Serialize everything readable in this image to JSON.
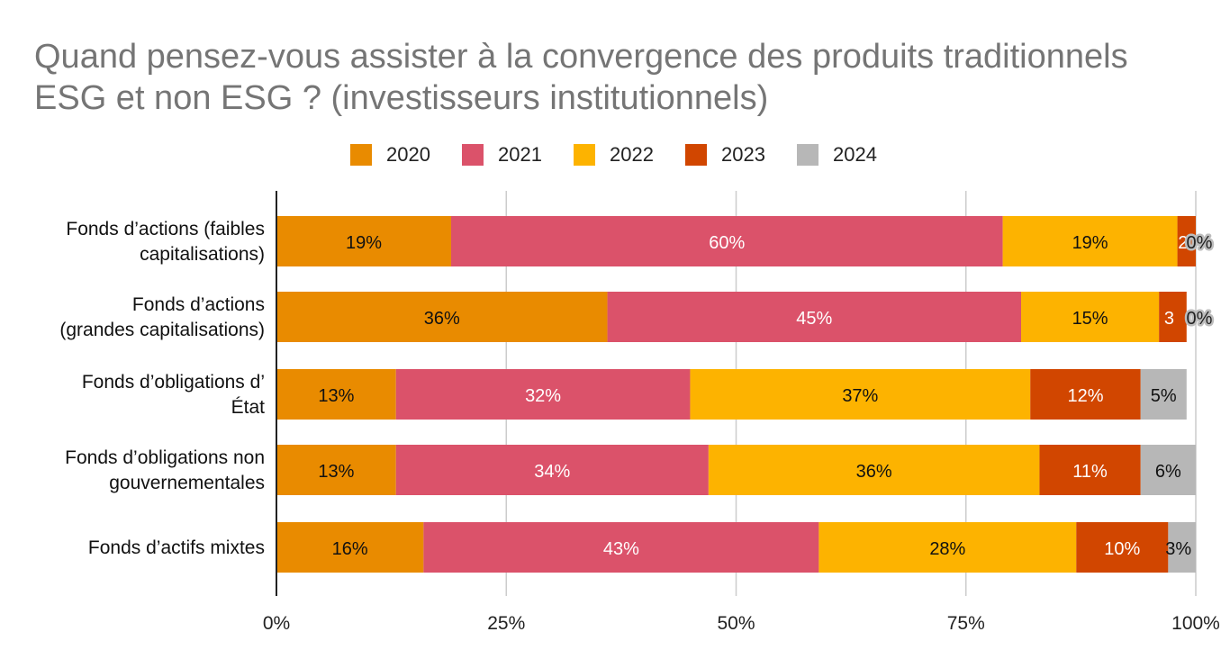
{
  "chart_data": {
    "type": "bar",
    "orientation": "horizontal",
    "stacked": "percent",
    "title": "Quand pensez-vous assister à la convergence des produits traditionnels ESG et non ESG ? (investisseurs institutionnels)",
    "title_lines": [
      "Quand pensez-vous assister à la convergence des produits traditionnels",
      "ESG et non ESG ? (investisseurs institutionnels)"
    ],
    "categories": [
      [
        "Fonds d’actions (faibles",
        "capitalisations)"
      ],
      [
        "Fonds d’actions",
        "(grandes capitalisations)"
      ],
      [
        "Fonds d’obligations d’",
        "État"
      ],
      [
        "Fonds d’obligations non",
        "gouvernementales"
      ],
      [
        "Fonds d’actifs mixtes"
      ]
    ],
    "series": [
      {
        "name": "2020",
        "color": "#E98B00",
        "label_color": "#111111",
        "values": [
          19,
          36,
          13,
          13,
          16
        ],
        "labels": [
          "19%",
          "36%",
          "13%",
          "13%",
          "16%"
        ]
      },
      {
        "name": "2021",
        "color": "#DB526A",
        "label_color": "#ffffff",
        "values": [
          60,
          45,
          32,
          34,
          43
        ],
        "labels": [
          "60%",
          "45%",
          "32%",
          "34%",
          "43%"
        ]
      },
      {
        "name": "2022",
        "color": "#FDB300",
        "label_color": "#111111",
        "values": [
          19,
          15,
          37,
          36,
          28
        ],
        "labels": [
          "19%",
          "15%",
          "37%",
          "36%",
          "28%"
        ]
      },
      {
        "name": "2023",
        "color": "#D14600",
        "label_color": "#ffffff",
        "values": [
          2,
          3,
          12,
          11,
          10
        ],
        "labels": [
          "2",
          "3",
          "12%",
          "11%",
          "10%"
        ]
      },
      {
        "name": "2024",
        "color": "#B7B7B7",
        "label_color": "#111111",
        "values": [
          0,
          0,
          5,
          6,
          3
        ],
        "labels": [
          "0%",
          "0%",
          "5%",
          "6%",
          "3%"
        ]
      }
    ],
    "x_ticks": [
      "0%",
      "25%",
      "50%",
      "75%",
      "100%"
    ],
    "xlim": [
      0,
      100
    ],
    "grid": true,
    "legend_position": "top"
  }
}
